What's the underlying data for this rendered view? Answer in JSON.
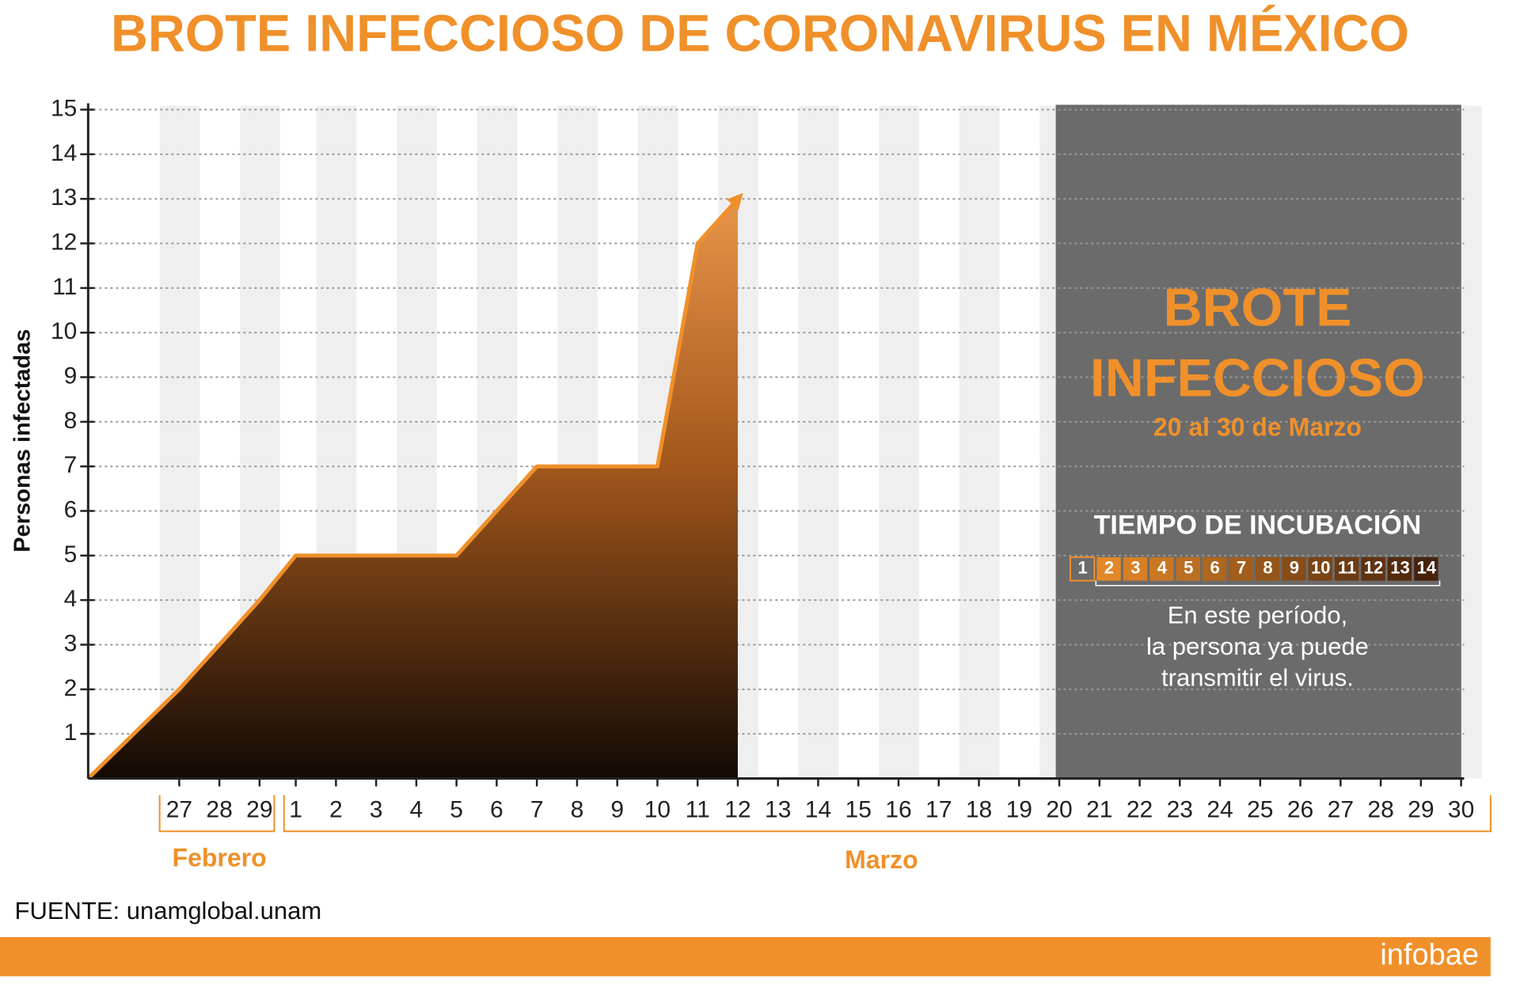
{
  "chart_data": {
    "type": "line",
    "title": "BROTE INFECCIOSO DE CORONAVIRUS EN MÉXICO",
    "y_label": "Personas infectadas",
    "categories": [
      null,
      "27",
      "28",
      "29",
      "1",
      "2",
      "3",
      "4",
      "5",
      "6",
      "7",
      "8",
      "9",
      "10",
      "11",
      "12",
      "13",
      "14",
      "15",
      "16",
      "17",
      "18",
      "19",
      "20",
      "21",
      "22",
      "23",
      "24",
      "25",
      "26",
      "27",
      "28",
      "29",
      "30"
    ],
    "months": [
      "Febrero",
      "Marzo"
    ],
    "values": [
      0,
      2,
      3,
      4,
      5,
      5,
      5,
      5,
      5,
      6,
      7,
      7,
      7,
      7,
      12,
      13,
      null,
      null,
      null,
      null,
      null,
      null,
      null,
      null,
      null,
      null,
      null,
      null,
      null,
      null,
      null,
      null,
      null,
      null
    ],
    "color": "#f0902a",
    "ylim": [
      0,
      15
    ],
    "yticks": [
      1,
      2,
      3,
      4,
      5,
      6,
      7,
      8,
      9,
      10,
      11,
      12,
      13,
      14,
      15
    ],
    "grid": true,
    "outbreak": {
      "title_lines": [
        "BROTE",
        "INFECCIOSO"
      ],
      "subtitle": "20 al 30 de Marzo",
      "incubation_title": "TIEMPO DE INCUBACIÓN",
      "incubation_days": [
        1,
        2,
        3,
        4,
        5,
        6,
        7,
        8,
        9,
        10,
        11,
        12,
        13,
        14
      ],
      "note_lines": [
        "En este período,",
        "la persona ya puede",
        "transmitir el virus."
      ]
    },
    "source": "FUENTE: unamglobal.unam",
    "brand": "infobae"
  }
}
